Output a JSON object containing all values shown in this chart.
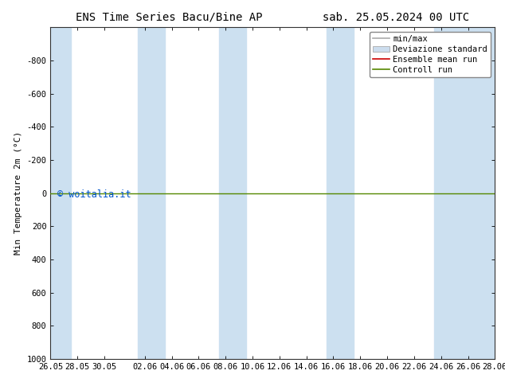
{
  "title": "ENS Time Series Bacu/Bine AP         sab. 25.05.2024 00 UTC",
  "ylabel": "Min Temperature 2m (°C)",
  "watermark": "© woitalia.it",
  "ylim_bottom": 1000,
  "ylim_top": -1000,
  "yticks": [
    -800,
    -600,
    -400,
    -200,
    0,
    200,
    400,
    600,
    800,
    1000
  ],
  "x_start_num": 0,
  "x_end_num": 33,
  "xtick_labels": [
    "26.05",
    "28.05",
    "30.05",
    "02.06",
    "04.06",
    "06.06",
    "08.06",
    "10.06",
    "12.06",
    "14.06",
    "16.06",
    "18.06",
    "20.06",
    "22.06",
    "24.06",
    "26.06",
    "28.06"
  ],
  "xtick_positions": [
    0,
    2,
    4,
    7,
    9,
    11,
    13,
    15,
    17,
    19,
    21,
    23,
    25,
    27,
    29,
    31,
    33
  ],
  "shade_bands": [
    [
      0,
      1.5
    ],
    [
      6.5,
      8.5
    ],
    [
      12.5,
      14.5
    ],
    [
      20.5,
      22.5
    ],
    [
      28.5,
      33
    ]
  ],
  "shade_color": "#cce0f0",
  "control_run_y": 0,
  "control_run_color": "#558800",
  "ensemble_mean_color": "#cc0000",
  "minmax_color": "#aaaaaa",
  "std_color": "#ccddee",
  "legend_fontsize": 7.5,
  "title_fontsize": 10,
  "ylabel_fontsize": 8,
  "tick_fontsize": 7.5,
  "watermark_color": "#0055cc",
  "background_color": "#ffffff",
  "plot_bg_color": "#ffffff"
}
